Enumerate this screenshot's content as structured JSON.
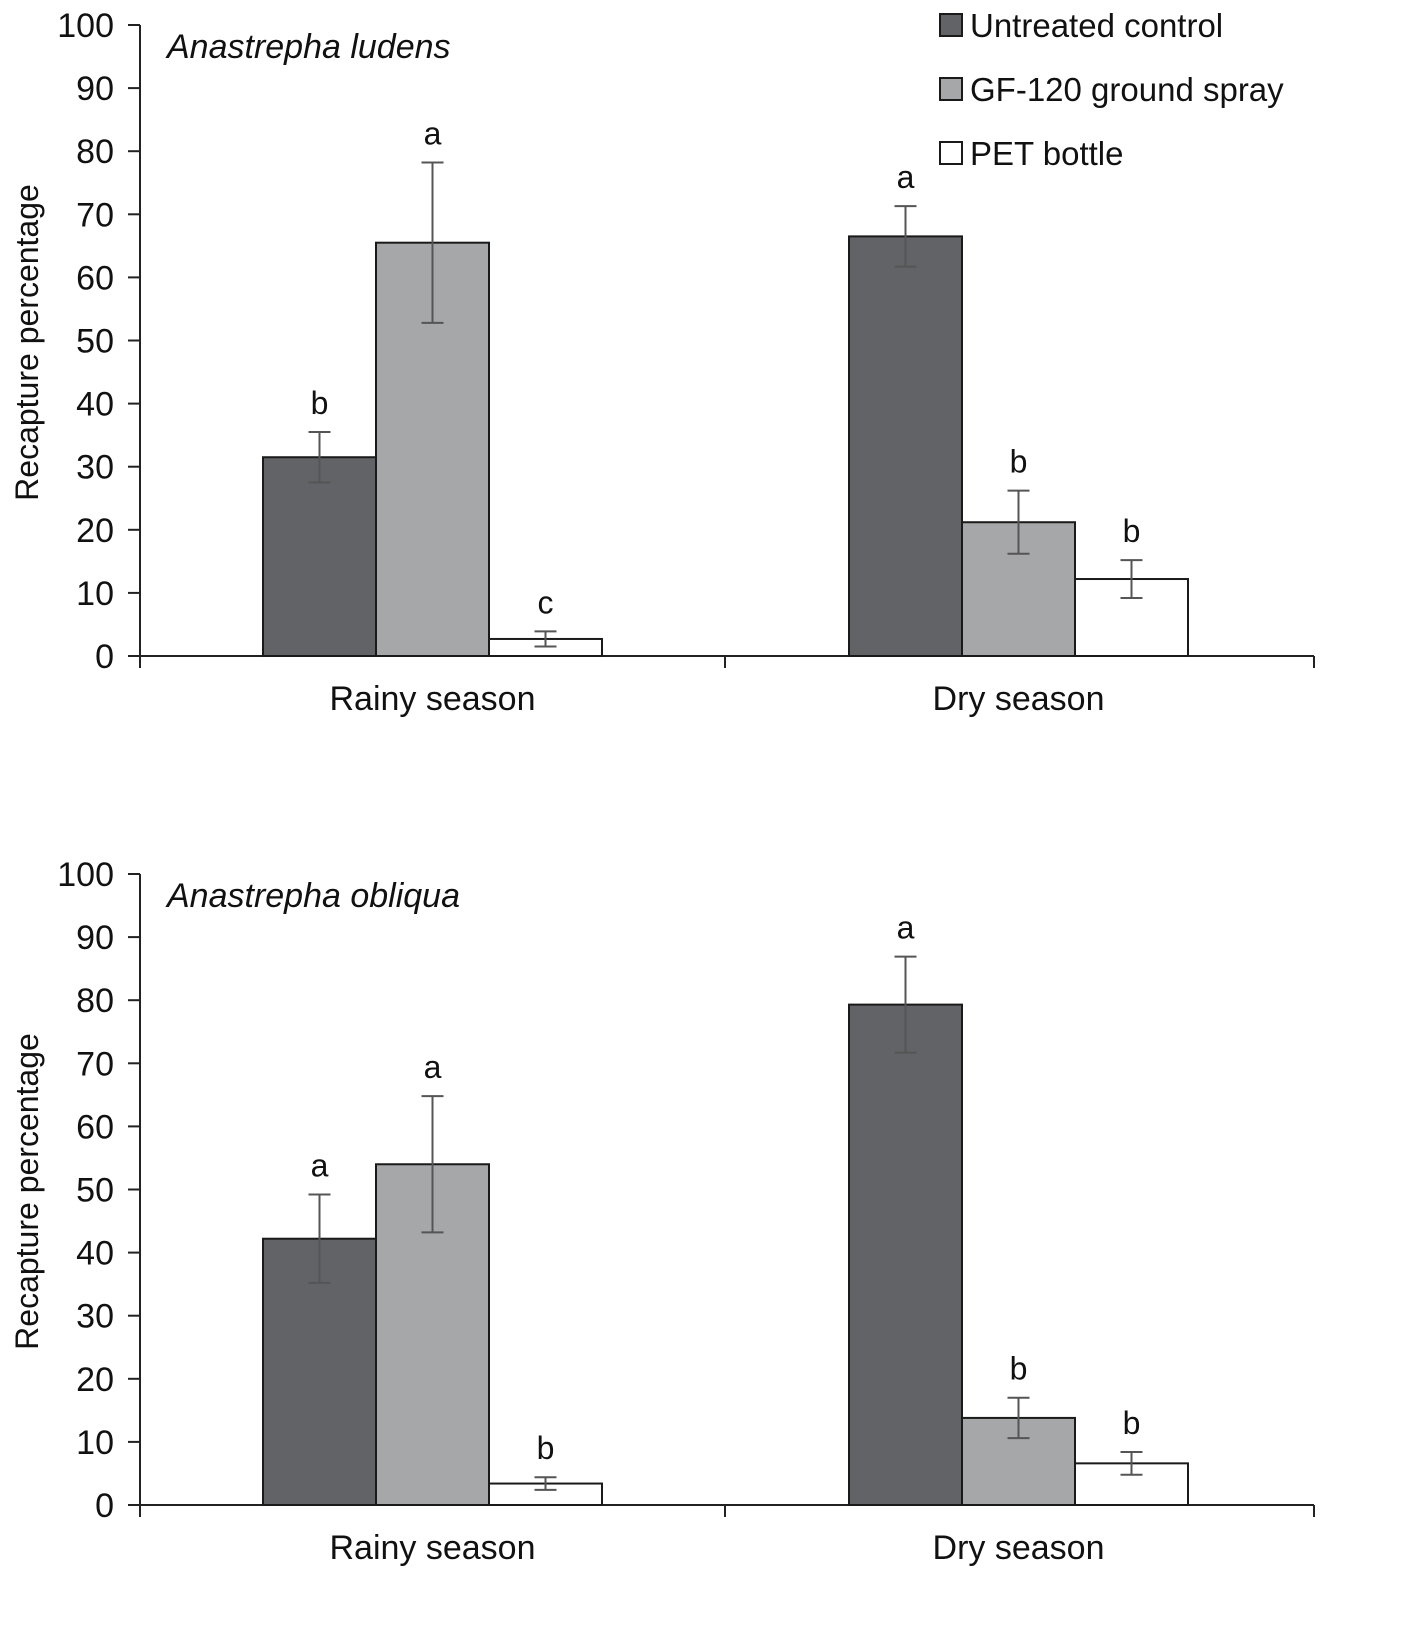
{
  "figure": {
    "legend": [
      {
        "name": "Untreated control",
        "color": "#626366"
      },
      {
        "name": "GF-120 ground spray",
        "color": "#a6a7a9"
      },
      {
        "name": "PET bottle",
        "color": "#ffffff"
      }
    ]
  },
  "chart_data": [
    {
      "type": "bar",
      "title": "Anastrepha ludens",
      "xlabel": "",
      "ylabel": "Recapture percentage",
      "ylim": [
        0,
        100
      ],
      "yticks": [
        "0",
        "10",
        "20",
        "30",
        "40",
        "50",
        "60",
        "70",
        "80",
        "90",
        "100"
      ],
      "categories": [
        "Rainy season",
        "Dry season"
      ],
      "series": [
        {
          "name": "Untreated control",
          "values": [
            31.5,
            66.5
          ],
          "errors": [
            4,
            4.8
          ],
          "letters": [
            "b",
            "a"
          ]
        },
        {
          "name": "GF-120 ground spray",
          "values": [
            65.5,
            21.2
          ],
          "errors": [
            12.7,
            5
          ],
          "letters": [
            "a",
            "b"
          ]
        },
        {
          "name": "PET bottle",
          "values": [
            2.7,
            12.2
          ],
          "errors": [
            1.2,
            3
          ],
          "letters": [
            "c",
            "b"
          ]
        }
      ],
      "legend_position": "top-right"
    },
    {
      "type": "bar",
      "title": "Anastrepha obliqua",
      "xlabel": "",
      "ylabel": "Recapture percentage",
      "ylim": [
        0,
        100
      ],
      "yticks": [
        "0",
        "10",
        "20",
        "30",
        "40",
        "50",
        "60",
        "70",
        "80",
        "90",
        "100"
      ],
      "categories": [
        "Rainy season",
        "Dry season"
      ],
      "series": [
        {
          "name": "Untreated control",
          "values": [
            42.2,
            79.3
          ],
          "errors": [
            7,
            7.6
          ],
          "letters": [
            "a",
            "a"
          ]
        },
        {
          "name": "GF-120 ground spray",
          "values": [
            54,
            13.8
          ],
          "errors": [
            10.8,
            3.2
          ],
          "letters": [
            "a",
            "b"
          ]
        },
        {
          "name": "PET bottle",
          "values": [
            3.4,
            6.6
          ],
          "errors": [
            1,
            1.8
          ],
          "letters": [
            "b",
            "b"
          ]
        }
      ]
    }
  ]
}
